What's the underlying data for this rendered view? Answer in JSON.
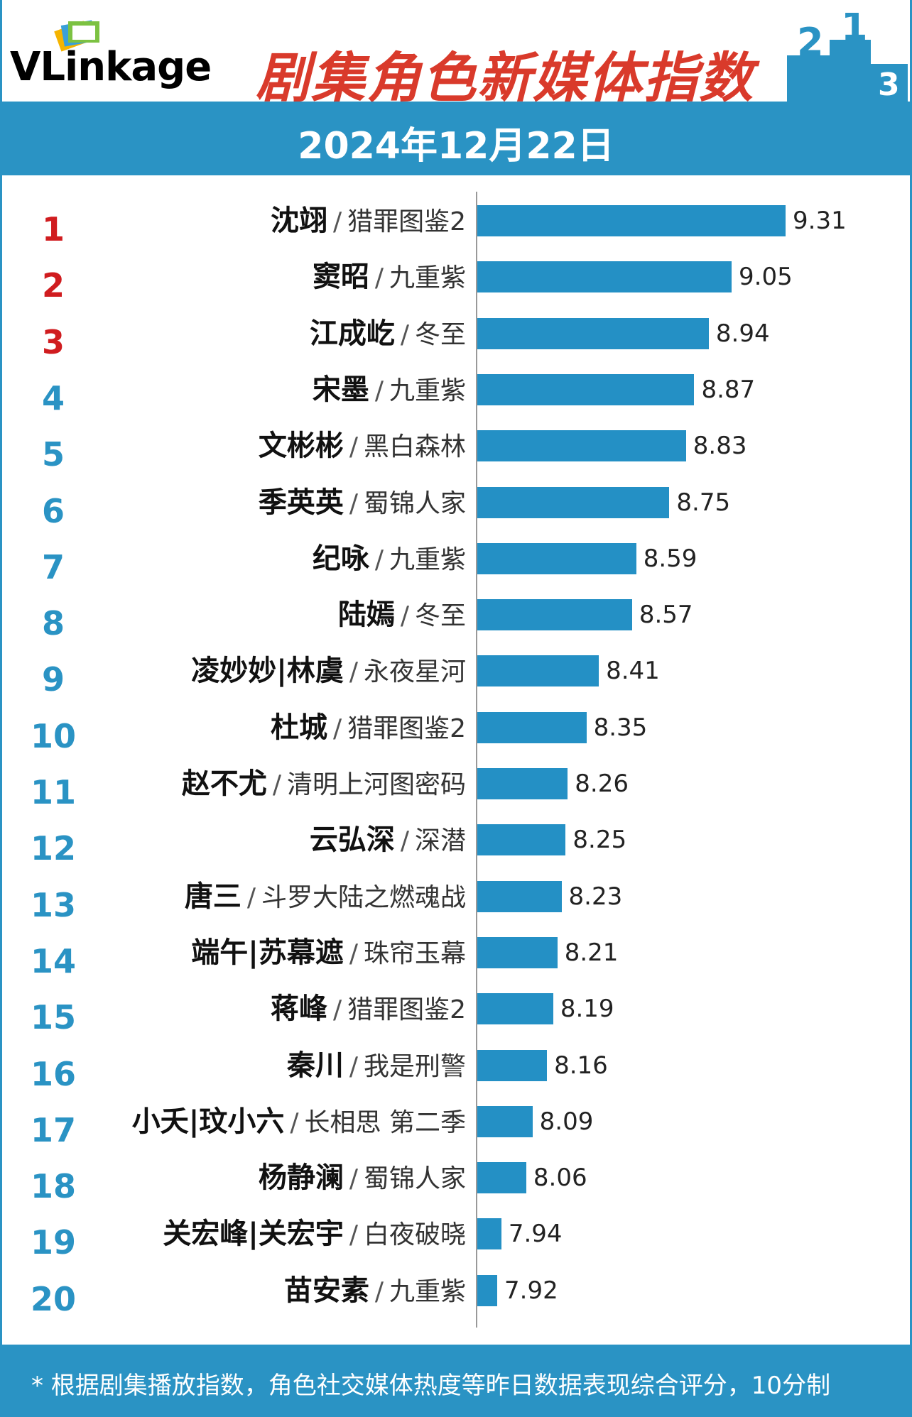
{
  "header": {
    "logo": "VLinkage",
    "title": "剧集角色新媒体指数",
    "date": "2024年12月22日"
  },
  "colors": {
    "bar": "#2490c5",
    "top_rank": "#d01c1f",
    "rank": "#2a93c4",
    "title": "#d93a2b"
  },
  "chart_data": {
    "type": "bar",
    "orientation": "horizontal",
    "title": "剧集角色新媒体指数",
    "categories": [
      "沈翊 / 猎罪图鉴2",
      "窦昭 / 九重紫",
      "江成屹 / 冬至",
      "宋墨 / 九重紫",
      "文彬彬 / 黑白森林",
      "季英英 / 蜀锦人家",
      "纪咏 / 九重紫",
      "陆嫣 / 冬至",
      "凌妙妙|林虞 / 永夜星河",
      "杜城 / 猎罪图鉴2",
      "赵不尤 / 清明上河图密码",
      "云弘深 / 深潜",
      "唐三 / 斗罗大陆之燃魂战",
      "端午|苏幕遮 / 珠帘玉幕",
      "蒋峰 / 猎罪图鉴2",
      "秦川 / 我是刑警",
      "小夭|玟小六 / 长相思 第二季",
      "杨静澜 / 蜀锦人家",
      "关宏峰|关宏宇 / 白夜破晓",
      "苗安素 / 九重紫"
    ],
    "values": [
      9.31,
      9.05,
      8.94,
      8.87,
      8.83,
      8.75,
      8.59,
      8.57,
      8.41,
      8.35,
      8.26,
      8.25,
      8.23,
      8.21,
      8.19,
      8.16,
      8.09,
      8.06,
      7.94,
      7.92
    ],
    "legend": "none",
    "grid": false
  },
  "rows": [
    {
      "rank": "1",
      "name": "沈翊",
      "show": "猎罪图鉴2",
      "value": "9.31"
    },
    {
      "rank": "2",
      "name": "窦昭",
      "show": "九重紫",
      "value": "9.05"
    },
    {
      "rank": "3",
      "name": "江成屹",
      "show": "冬至",
      "value": "8.94"
    },
    {
      "rank": "4",
      "name": "宋墨",
      "show": "九重紫",
      "value": "8.87"
    },
    {
      "rank": "5",
      "name": "文彬彬",
      "show": "黑白森林",
      "value": "8.83"
    },
    {
      "rank": "6",
      "name": "季英英",
      "show": "蜀锦人家",
      "value": "8.75"
    },
    {
      "rank": "7",
      "name": "纪咏",
      "show": "九重紫",
      "value": "8.59"
    },
    {
      "rank": "8",
      "name": "陆嫣",
      "show": "冬至",
      "value": "8.57"
    },
    {
      "rank": "9",
      "name": "凌妙妙|林虞",
      "show": "永夜星河",
      "value": "8.41"
    },
    {
      "rank": "10",
      "name": "杜城",
      "show": "猎罪图鉴2",
      "value": "8.35"
    },
    {
      "rank": "11",
      "name": "赵不尤",
      "show": "清明上河图密码",
      "value": "8.26"
    },
    {
      "rank": "12",
      "name": "云弘深",
      "show": "深潜",
      "value": "8.25"
    },
    {
      "rank": "13",
      "name": "唐三",
      "show": "斗罗大陆之燃魂战",
      "value": "8.23"
    },
    {
      "rank": "14",
      "name": "端午|苏幕遮",
      "show": "珠帘玉幕",
      "value": "8.21"
    },
    {
      "rank": "15",
      "name": "蒋峰",
      "show": "猎罪图鉴2",
      "value": "8.19"
    },
    {
      "rank": "16",
      "name": "秦川",
      "show": "我是刑警",
      "value": "8.16"
    },
    {
      "rank": "17",
      "name": "小夭|玟小六",
      "show": "长相思 第二季",
      "value": "8.09"
    },
    {
      "rank": "18",
      "name": "杨静澜",
      "show": "蜀锦人家",
      "value": "8.06"
    },
    {
      "rank": "19",
      "name": "关宏峰|关宏宇",
      "show": "白夜破晓",
      "value": "7.94"
    },
    {
      "rank": "20",
      "name": "苗安素",
      "show": "九重紫",
      "value": "7.92"
    }
  ],
  "separator": "/",
  "footer": {
    "note": "* 根据剧集播放指数，角色社交媒体热度等昨日数据表现综合评分，10分制"
  }
}
